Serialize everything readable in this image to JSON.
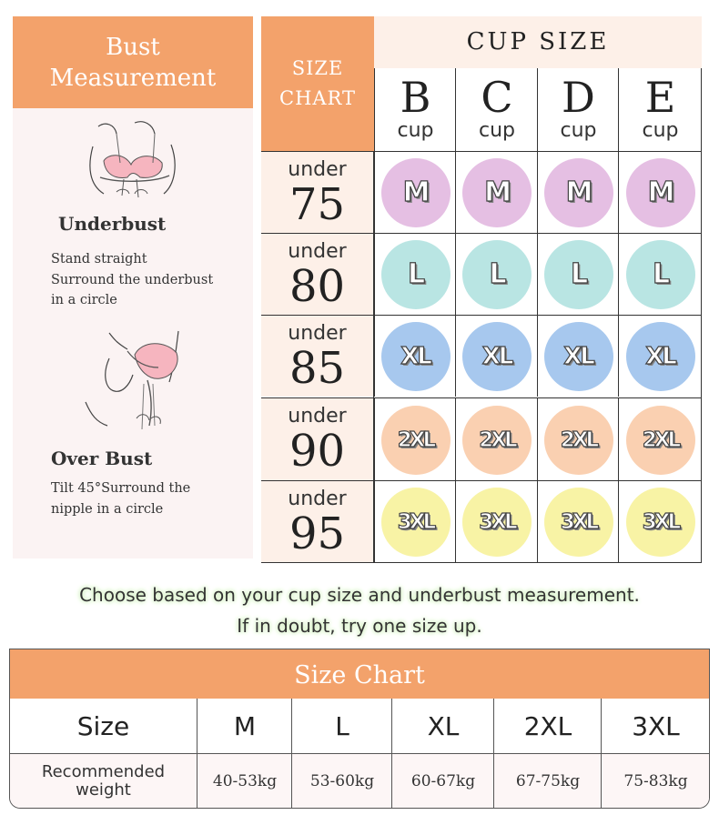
{
  "measurement_panel": {
    "title_line1": "Bust",
    "title_line2": "Measurement",
    "steps": [
      {
        "title": "Underbust",
        "description": "Stand straight\nSurround the underbust\nin a circle",
        "illustration": "underbust-measuring-illustration"
      },
      {
        "title": "Over Bust",
        "description": "Tilt 45°Surround the\nnipple in a circle",
        "illustration": "overbust-measuring-illustration"
      }
    ]
  },
  "size_matrix": {
    "corner_line1": "SIZE",
    "corner_line2": "CHART",
    "cup_size_title": "CUP  SIZE",
    "cups": [
      {
        "letter": "B",
        "word": "cup"
      },
      {
        "letter": "C",
        "word": "cup"
      },
      {
        "letter": "D",
        "word": "cup"
      },
      {
        "letter": "E",
        "word": "cup"
      }
    ],
    "rows": [
      {
        "prefix": "under",
        "number": "75",
        "size": "M",
        "color": "#e5bfe3"
      },
      {
        "prefix": "under",
        "number": "80",
        "size": "L",
        "color": "#b9e5e3"
      },
      {
        "prefix": "under",
        "number": "85",
        "size": "XL",
        "color": "#a7c8ee"
      },
      {
        "prefix": "under",
        "number": "90",
        "size": "2XL",
        "color": "#fad0b1"
      },
      {
        "prefix": "under",
        "number": "95",
        "size": "3XL",
        "color": "#f8f3a5"
      }
    ]
  },
  "guidance": {
    "line1": "Choose based on your cup size and underbust measurement.",
    "line2": "If in doubt, try one size up."
  },
  "size_chart": {
    "title": "Size Chart",
    "size_label": "Size",
    "weight_label": "Recommended weight",
    "columns": [
      {
        "size": "M",
        "weight": "40-53kg"
      },
      {
        "size": "L",
        "weight": "53-60kg"
      },
      {
        "size": "XL",
        "weight": "60-67kg"
      },
      {
        "size": "2XL",
        "weight": "67-75kg"
      },
      {
        "size": "3XL",
        "weight": "75-83kg"
      }
    ]
  },
  "colors": {
    "accent_orange": "#f3a26b",
    "panel_pink": "#fbf3f3",
    "row_peach": "#fdf0e8",
    "guidance_glow": "#d4f1c2"
  }
}
